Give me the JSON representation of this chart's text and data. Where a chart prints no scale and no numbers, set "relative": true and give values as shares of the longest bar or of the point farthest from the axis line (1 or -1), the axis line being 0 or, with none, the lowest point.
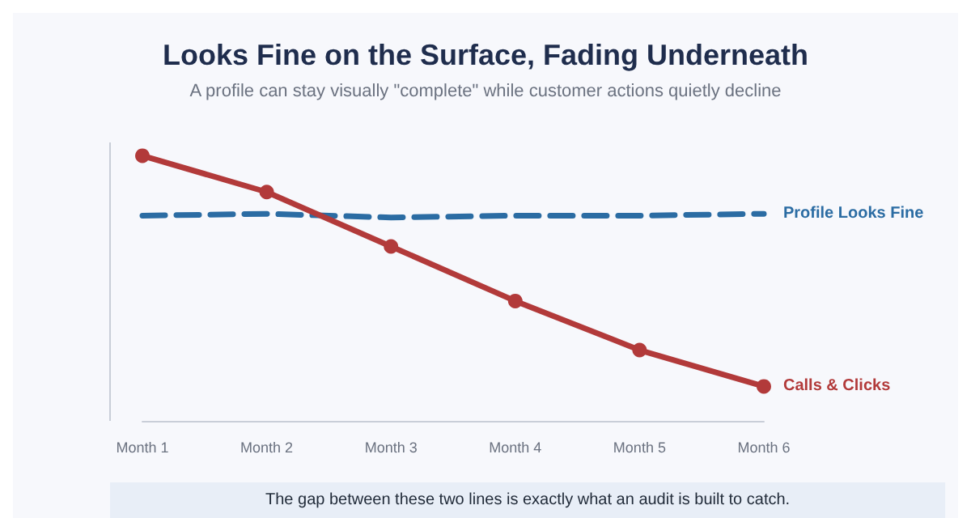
{
  "chart_data": {
    "type": "line",
    "title": "Looks Fine on the Surface, Fading Underneath",
    "subtitle": "A profile can stay visually \"complete\" while customer actions quietly decline",
    "categories": [
      "Month 1",
      "Month 2",
      "Month 3",
      "Month 4",
      "Month 5",
      "Month 6"
    ],
    "relative": true,
    "grid": false,
    "legend": false,
    "series": [
      {
        "name": "Profile Looks Fine",
        "color": "#2b6ca3",
        "marker": "none",
        "line_style": "dashed",
        "values": [
          0.774,
          0.781,
          0.767,
          0.774,
          0.774,
          0.781
        ]
      },
      {
        "name": "Calls & Clicks",
        "color": "#b23a3a",
        "marker": "circle",
        "line_style": "solid",
        "values": [
          1,
          0.863,
          0.658,
          0.452,
          0.267,
          0.13
        ]
      }
    ],
    "annotations": [
      "The gap between these two lines is exactly what an audit is built to catch."
    ]
  }
}
